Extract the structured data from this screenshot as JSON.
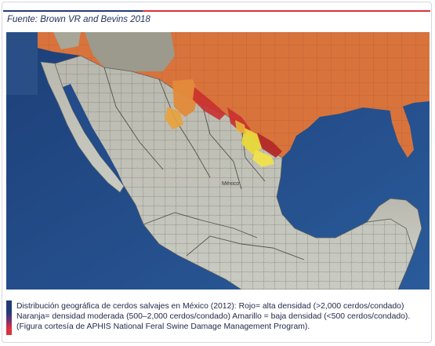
{
  "source_label": "Fuente: Brown VR and Bevins 2018",
  "map": {
    "city_label": "México",
    "legend_colors": {
      "high_density": "#c9302f",
      "moderate_density": "#e0703a",
      "low_density": "#e8d83a",
      "water": "#1f4b8c",
      "land": "#c8c8c0"
    }
  },
  "caption": {
    "line1": "Distribución geográfica de cerdos salvajes en México (2012): Rojo= alta densidad (>2,000 cerdos/condado)",
    "line2": "Naranja= densidad moderada (500–2,000 cerdos/condado) Amarillo = baja densidad (<500 cerdos/condado).",
    "line3": "(Figura cortesía de APHIS National Feral Swine Damage Management Program)."
  }
}
